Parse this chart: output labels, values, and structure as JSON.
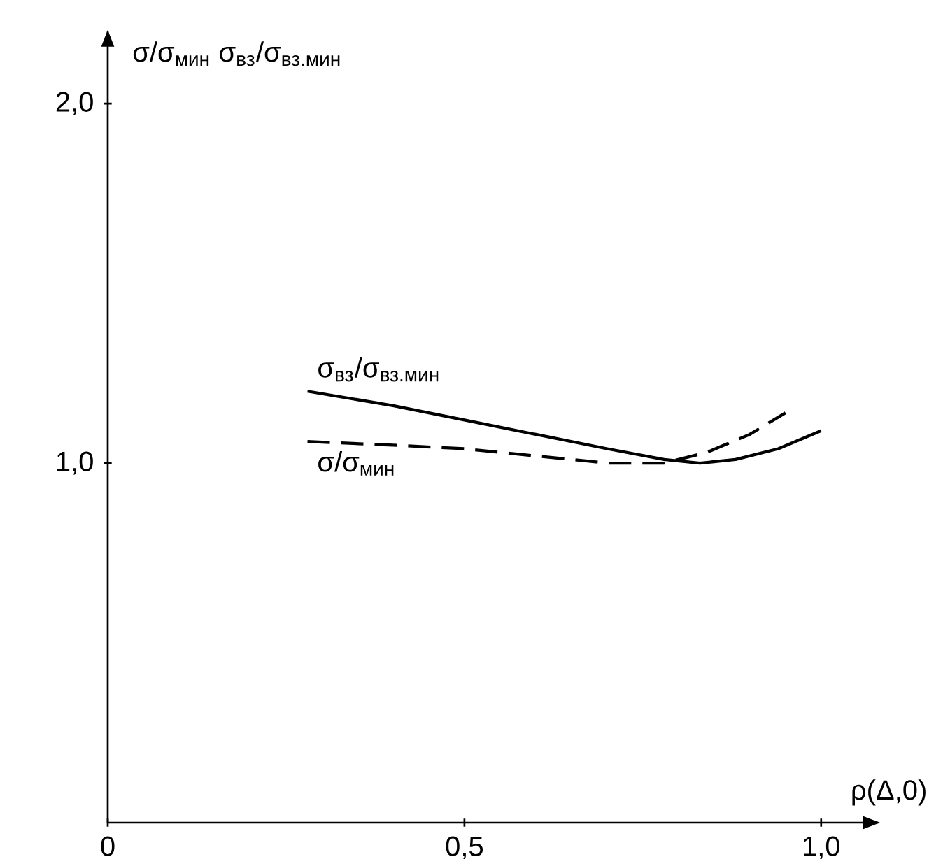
{
  "chart_data": {
    "type": "line",
    "xlabel": "ρ(Δ,0)",
    "ylabel": "σ/σ$_{мин}$  σ$_{вз}$/σ$_{вз.мин}$",
    "xlim": [
      0,
      1.08
    ],
    "ylim": [
      0,
      2.2
    ],
    "xticks": [
      {
        "value": 0,
        "label": "0"
      },
      {
        "value": 0.5,
        "label": "0,5"
      },
      {
        "value": 1,
        "label": "1,0"
      }
    ],
    "yticks": [
      {
        "value": 1,
        "label": "1,0"
      },
      {
        "value": 2,
        "label": "2,0"
      }
    ],
    "series": [
      {
        "name": "σ$_{вз}$/σ$_{вз.мин}$",
        "color": "#000000",
        "line_style": "solid",
        "x": [
          0.28,
          0.4,
          0.5,
          0.6,
          0.7,
          0.78,
          0.83,
          0.88,
          0.94,
          1.0
        ],
        "values": [
          1.2,
          1.16,
          1.12,
          1.08,
          1.04,
          1.01,
          1.0,
          1.01,
          1.04,
          1.09
        ]
      },
      {
        "name": "σ/σ$_{мин}$",
        "color": "#000000",
        "line_style": "dashed",
        "x": [
          0.28,
          0.4,
          0.5,
          0.6,
          0.7,
          0.78,
          0.84,
          0.9,
          0.95
        ],
        "values": [
          1.06,
          1.05,
          1.04,
          1.02,
          1.0,
          1.0,
          1.03,
          1.08,
          1.14
        ]
      }
    ]
  }
}
